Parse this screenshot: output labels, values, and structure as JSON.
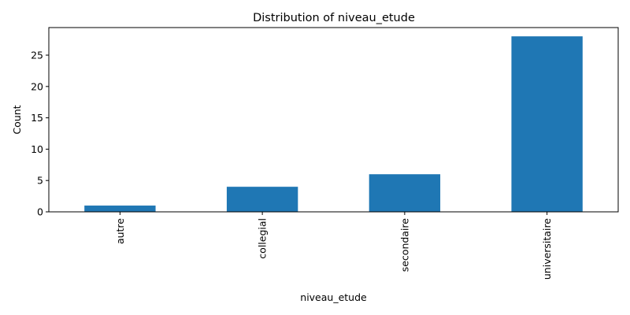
{
  "chart_data": {
    "type": "bar",
    "title": "Distribution of niveau_etude",
    "xlabel": "niveau_etude",
    "ylabel": "Count",
    "categories": [
      "autre",
      "collegial",
      "secondaire",
      "universitaire"
    ],
    "values": [
      1,
      4,
      6,
      28
    ],
    "ylim": [
      0,
      29.4
    ],
    "yticks": [
      0,
      5,
      10,
      15,
      20,
      25
    ],
    "bar_color": "#1f77b4",
    "grid": false,
    "legend": "none"
  }
}
